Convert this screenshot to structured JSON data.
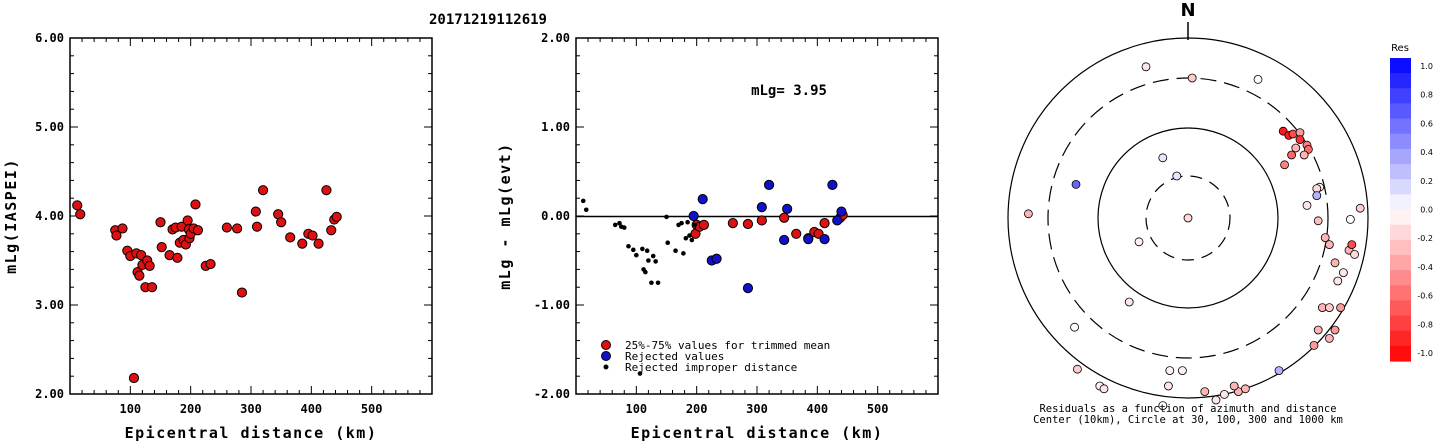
{
  "title": "20171219112619",
  "chart_data": [
    {
      "type": "scatter",
      "ylabel": "mLg(IASPEI)",
      "xlabel": "Epicentral distance (km)",
      "xlim": [
        0,
        600
      ],
      "ylim": [
        2.0,
        6.0
      ],
      "xticks": [
        "100",
        "200",
        "300",
        "400",
        "500"
      ],
      "yticks": [
        "2.00",
        "3.00",
        "4.00",
        "5.00",
        "6.00"
      ],
      "series": [
        {
          "color": "#dd1111",
          "points": [
            [
              12,
              4.12
            ],
            [
              17,
              4.02
            ],
            [
              75,
              3.84
            ],
            [
              77,
              3.78
            ],
            [
              87,
              3.86
            ],
            [
              95,
              3.61
            ],
            [
              100,
              3.55
            ],
            [
              106,
              2.18
            ],
            [
              110,
              3.58
            ],
            [
              112,
              3.37
            ],
            [
              115,
              3.33
            ],
            [
              118,
              3.56
            ],
            [
              120,
              3.45
            ],
            [
              125,
              3.2
            ],
            [
              128,
              3.5
            ],
            [
              132,
              3.44
            ],
            [
              136,
              3.2
            ],
            [
              150,
              3.93
            ],
            [
              152,
              3.65
            ],
            [
              165,
              3.56
            ],
            [
              170,
              3.85
            ],
            [
              175,
              3.87
            ],
            [
              178,
              3.53
            ],
            [
              182,
              3.7
            ],
            [
              185,
              3.88
            ],
            [
              188,
              3.73
            ],
            [
              192,
              3.68
            ],
            [
              195,
              3.95
            ],
            [
              197,
              3.85
            ],
            [
              198,
              3.75
            ],
            [
              200,
              3.8
            ],
            [
              205,
              3.86
            ],
            [
              208,
              4.13
            ],
            [
              212,
              3.84
            ],
            [
              225,
              3.44
            ],
            [
              233,
              3.46
            ],
            [
              260,
              3.87
            ],
            [
              277,
              3.86
            ],
            [
              285,
              3.14
            ],
            [
              308,
              4.05
            ],
            [
              310,
              3.88
            ],
            [
              320,
              4.29
            ],
            [
              345,
              4.02
            ],
            [
              350,
              3.93
            ],
            [
              365,
              3.76
            ],
            [
              385,
              3.69
            ],
            [
              395,
              3.8
            ],
            [
              402,
              3.78
            ],
            [
              412,
              3.69
            ],
            [
              425,
              4.29
            ],
            [
              433,
              3.84
            ],
            [
              438,
              3.96
            ],
            [
              442,
              3.99
            ]
          ]
        }
      ]
    },
    {
      "type": "scatter",
      "ylabel": "mLg - mLg(evt)",
      "xlabel": "Epicentral distance (km)",
      "xlim": [
        0,
        600
      ],
      "ylim": [
        -2.0,
        2.0
      ],
      "xticks": [
        "100",
        "200",
        "300",
        "400",
        "500"
      ],
      "yticks": [
        "-2.00",
        "-1.00",
        "0.00",
        "1.00",
        "2.00"
      ],
      "annotation": "mLg= 3.95",
      "legend": [
        "25%-75% values for trimmed mean",
        "Rejected values",
        "Rejected improper distance"
      ],
      "series": [
        {
          "name": "25%-75% values for trimmed mean",
          "color": "#dd1111",
          "points": [
            [
              198,
              -0.2
            ],
            [
              200,
              -0.1
            ],
            [
              205,
              -0.12
            ],
            [
              212,
              -0.1
            ],
            [
              260,
              -0.08
            ],
            [
              285,
              -0.09
            ],
            [
              308,
              -0.05
            ],
            [
              345,
              -0.02
            ],
            [
              365,
              -0.2
            ],
            [
              385,
              -0.25
            ],
            [
              395,
              -0.18
            ],
            [
              402,
              -0.2
            ],
            [
              412,
              -0.08
            ],
            [
              438,
              -0.02
            ],
            [
              442,
              0.01
            ]
          ]
        },
        {
          "name": "Rejected values",
          "color": "#1111cc",
          "points": [
            [
              195,
              0.0
            ],
            [
              210,
              0.19
            ],
            [
              225,
              -0.5
            ],
            [
              233,
              -0.48
            ],
            [
              285,
              -0.81
            ],
            [
              308,
              0.1
            ],
            [
              320,
              0.35
            ],
            [
              345,
              -0.27
            ],
            [
              350,
              0.08
            ],
            [
              385,
              -0.26
            ],
            [
              412,
              -0.26
            ],
            [
              425,
              0.35
            ],
            [
              433,
              -0.05
            ],
            [
              440,
              0.05
            ]
          ]
        },
        {
          "name": "Rejected improper distance",
          "color": "#000000",
          "points": [
            [
              12,
              0.17
            ],
            [
              17,
              0.07
            ],
            [
              65,
              -0.1
            ],
            [
              72,
              -0.08
            ],
            [
              75,
              -0.12
            ],
            [
              80,
              -0.13
            ],
            [
              87,
              -0.34
            ],
            [
              95,
              -0.38
            ],
            [
              100,
              -0.44
            ],
            [
              106,
              -1.77
            ],
            [
              110,
              -0.37
            ],
            [
              112,
              -0.6
            ],
            [
              115,
              -0.63
            ],
            [
              118,
              -0.39
            ],
            [
              120,
              -0.5
            ],
            [
              125,
              -0.75
            ],
            [
              128,
              -0.45
            ],
            [
              132,
              -0.51
            ],
            [
              136,
              -0.75
            ],
            [
              150,
              -0.01
            ],
            [
              152,
              -0.3
            ],
            [
              165,
              -0.39
            ],
            [
              170,
              -0.1
            ],
            [
              175,
              -0.08
            ],
            [
              178,
              -0.42
            ],
            [
              182,
              -0.25
            ],
            [
              185,
              -0.07
            ],
            [
              188,
              -0.22
            ],
            [
              192,
              -0.27
            ],
            [
              197,
              -0.1
            ]
          ]
        }
      ]
    },
    {
      "type": "polar-scatter",
      "north_label": "N",
      "caption_lines": [
        "Residuals as a function of azimuth and distance",
        "Center (10km), Circle at 30, 100, 300 and 1000 km"
      ],
      "colorbar": {
        "title": "Res",
        "ticks": [
          "1.0",
          "0.8",
          "0.6",
          "0.4",
          "0.2",
          "0.0",
          "-0.2",
          "-0.4",
          "-0.6",
          "-0.8",
          "-1.0"
        ],
        "positive_color": "#0000ff",
        "negative_color": "#ff0000"
      },
      "residual_points": [
        [
          0.0,
          0.0,
          -0.15
        ],
        [
          -0.35,
          -0.17,
          -0.05
        ],
        [
          -0.18,
          0.43,
          0.1
        ],
        [
          -0.8,
          0.24,
          0.6
        ],
        [
          -0.08,
          0.3,
          0.1
        ],
        [
          -0.3,
          1.08,
          -0.1
        ],
        [
          0.03,
          1.0,
          -0.2
        ],
        [
          0.5,
          0.99,
          0.0
        ],
        [
          0.68,
          0.62,
          -0.9
        ],
        [
          0.72,
          0.59,
          -0.9
        ],
        [
          0.75,
          0.6,
          -0.7
        ],
        [
          0.8,
          0.61,
          -0.4
        ],
        [
          0.8,
          0.56,
          -0.8
        ],
        [
          0.85,
          0.52,
          -0.5
        ],
        [
          0.86,
          0.49,
          -0.6
        ],
        [
          0.77,
          0.5,
          -0.3
        ],
        [
          0.74,
          0.45,
          -0.6
        ],
        [
          0.83,
          0.45,
          -0.3
        ],
        [
          0.69,
          0.38,
          -0.5
        ],
        [
          0.94,
          0.22,
          -0.05
        ],
        [
          0.92,
          0.21,
          -0.15
        ],
        [
          0.92,
          0.16,
          0.3
        ],
        [
          0.85,
          0.09,
          -0.1
        ],
        [
          1.23,
          0.07,
          -0.2
        ],
        [
          1.16,
          -0.01,
          0.0
        ],
        [
          0.93,
          -0.02,
          -0.25
        ],
        [
          0.98,
          -0.14,
          -0.3
        ],
        [
          1.01,
          -0.19,
          -0.3
        ],
        [
          1.05,
          -0.32,
          -0.3
        ],
        [
          1.11,
          -0.39,
          -0.1
        ],
        [
          1.15,
          -0.23,
          -0.3
        ],
        [
          1.17,
          -0.19,
          -0.7
        ],
        [
          1.19,
          -0.26,
          -0.15
        ],
        [
          1.07,
          -0.45,
          -0.1
        ],
        [
          0.96,
          -0.64,
          -0.3
        ],
        [
          1.01,
          -0.64,
          -0.2
        ],
        [
          1.09,
          -0.64,
          -0.4
        ],
        [
          1.05,
          -0.8,
          -0.4
        ],
        [
          1.01,
          -0.86,
          -0.3
        ],
        [
          0.9,
          -0.91,
          -0.4
        ],
        [
          0.93,
          -0.8,
          -0.3
        ],
        [
          -1.14,
          0.03,
          -0.3
        ],
        [
          -0.81,
          -0.78,
          0.0
        ],
        [
          -0.42,
          -0.6,
          -0.1
        ],
        [
          -0.79,
          -1.08,
          -0.2
        ],
        [
          -0.63,
          -1.2,
          -0.05
        ],
        [
          -0.6,
          -1.22,
          -0.1
        ],
        [
          -0.13,
          -1.09,
          -0.05
        ],
        [
          -0.04,
          -1.09,
          -0.05
        ],
        [
          -0.14,
          -1.2,
          -0.1
        ],
        [
          -0.18,
          -1.34,
          0.0
        ],
        [
          0.12,
          -1.24,
          -0.3
        ],
        [
          0.2,
          -1.3,
          -0.1
        ],
        [
          0.26,
          -1.26,
          -0.1
        ],
        [
          0.36,
          -1.24,
          -0.3
        ],
        [
          0.33,
          -1.2,
          -0.3
        ],
        [
          0.41,
          -1.22,
          -0.3
        ],
        [
          0.65,
          -1.09,
          0.3
        ]
      ]
    }
  ]
}
